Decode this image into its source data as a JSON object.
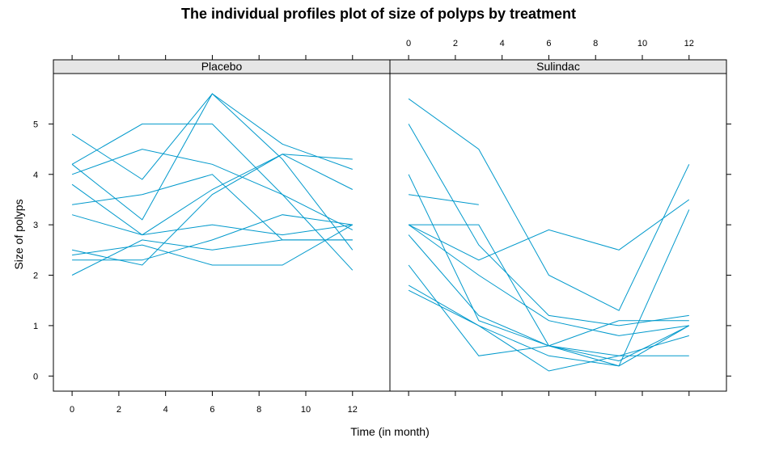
{
  "chart_data": {
    "type": "line",
    "title": "The individual profiles plot of size of polyps by treatment",
    "xlabel": "Time (in month)",
    "ylabel": "Size of polyps",
    "xlim": [
      -0.8,
      13.6
    ],
    "ylim": [
      -0.3,
      6.0
    ],
    "x_ticks": [
      "0",
      "2",
      "4",
      "6",
      "8",
      "10",
      "12"
    ],
    "y_ticks": [
      "0",
      "1",
      "2",
      "3",
      "4",
      "5"
    ],
    "line_color": "#0099cc",
    "panels": [
      {
        "name": "Placebo",
        "series": [
          {
            "x": [
              0,
              3,
              6,
              9,
              12
            ],
            "y": [
              4.8,
              3.9,
              5.6,
              4.3,
              2.5
            ]
          },
          {
            "x": [
              0,
              3,
              6,
              9,
              12
            ],
            "y": [
              4.2,
              5.0,
              5.0,
              3.6,
              2.9
            ]
          },
          {
            "x": [
              0,
              3,
              6,
              9,
              12
            ],
            "y": [
              4.0,
              4.5,
              4.2,
              3.6,
              2.1
            ]
          },
          {
            "x": [
              0,
              3,
              6,
              9,
              12
            ],
            "y": [
              4.2,
              3.1,
              5.6,
              4.6,
              4.1
            ]
          },
          {
            "x": [
              0,
              3,
              6,
              9,
              12
            ],
            "y": [
              3.8,
              2.8,
              3.7,
              4.4,
              3.7
            ]
          },
          {
            "x": [
              0,
              3,
              6,
              9,
              12
            ],
            "y": [
              3.4,
              3.6,
              4.0,
              2.7,
              2.7
            ]
          },
          {
            "x": [
              0,
              3,
              6,
              9,
              12
            ],
            "y": [
              3.2,
              2.8,
              3.0,
              2.8,
              3.0
            ]
          },
          {
            "x": [
              0,
              3,
              6,
              9,
              12
            ],
            "y": [
              2.5,
              2.2,
              3.6,
              4.4,
              4.3
            ]
          },
          {
            "x": [
              0,
              3,
              6,
              9,
              12
            ],
            "y": [
              2.4,
              2.6,
              2.2,
              2.2,
              3.0
            ]
          },
          {
            "x": [
              0,
              3,
              6,
              9,
              12
            ],
            "y": [
              2.3,
              2.3,
              2.7,
              3.2,
              3.0
            ]
          },
          {
            "x": [
              0,
              3,
              6,
              9,
              12
            ],
            "y": [
              2.0,
              2.7,
              2.5,
              2.7,
              2.7
            ]
          }
        ]
      },
      {
        "name": "Sulindac",
        "series": [
          {
            "x": [
              0,
              3,
              6,
              9,
              12
            ],
            "y": [
              5.5,
              4.5,
              2.0,
              1.3,
              4.2
            ]
          },
          {
            "x": [
              0,
              3,
              6,
              9,
              12
            ],
            "y": [
              5.0,
              2.6,
              1.2,
              1.0,
              1.2
            ]
          },
          {
            "x": [
              0,
              3,
              6,
              9,
              12
            ],
            "y": [
              4.0,
              1.1,
              0.6,
              0.2,
              3.3
            ]
          },
          {
            "x": [
              0,
              3
            ],
            "y": [
              3.6,
              3.4
            ]
          },
          {
            "x": [
              0,
              3,
              6,
              9,
              12
            ],
            "y": [
              3.0,
              2.3,
              2.9,
              2.5,
              3.5
            ]
          },
          {
            "x": [
              0,
              3,
              6,
              9,
              12
            ],
            "y": [
              3.0,
              3.0,
              0.6,
              1.1,
              1.1
            ]
          },
          {
            "x": [
              0,
              3,
              6,
              9,
              12
            ],
            "y": [
              2.8,
              1.2,
              0.6,
              0.4,
              0.4
            ]
          },
          {
            "x": [
              0,
              3,
              6,
              9,
              12
            ],
            "y": [
              2.2,
              0.4,
              0.6,
              0.3,
              1.0
            ]
          },
          {
            "x": [
              0,
              3,
              6,
              9,
              12
            ],
            "y": [
              1.8,
              1.0,
              0.1,
              0.4,
              0.8
            ]
          },
          {
            "x": [
              0,
              3,
              6,
              9,
              12
            ],
            "y": [
              1.7,
              1.0,
              0.4,
              0.2,
              1.0
            ]
          },
          {
            "x": [
              0,
              3,
              6,
              9,
              12
            ],
            "y": [
              3.0,
              2.0,
              1.1,
              0.8,
              1.0
            ]
          }
        ]
      }
    ]
  }
}
